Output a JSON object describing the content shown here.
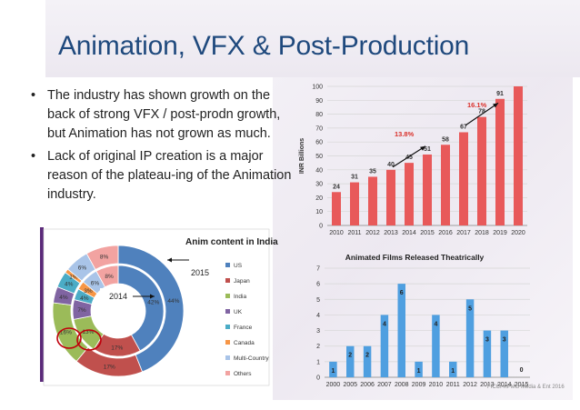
{
  "slide": {
    "title": "Animation, VFX & Post-Production",
    "bullets": [
      "The industry has shown growth on the back of strong VFX / post-prodn growth, but Animation has not grown as much.",
      "Lack of original IP creation is a major reason of the plateau-ing of the Animation industry."
    ],
    "bullet_symbol": "•",
    "credit": "FICCI-KPMG Media & Ent 2016",
    "colors": {
      "title": "#1f497d",
      "bar": "#e8595a",
      "blue_bar": "#4f9fe0",
      "growth": "#d9312b"
    }
  },
  "chart_data": [
    {
      "type": "bar",
      "ylabel": "INR Billions",
      "categories": [
        "2010",
        "2011",
        "2012",
        "2013",
        "2014",
        "2015",
        "2016",
        "2017",
        "2018",
        "2019",
        "2020"
      ],
      "values": [
        24,
        31,
        35,
        40,
        45,
        51,
        58,
        67,
        78,
        91,
        100
      ],
      "value_labels": [
        "24",
        "31",
        "35",
        "40",
        "45",
        "51",
        "58",
        "67",
        "78",
        "91",
        ""
      ],
      "ylim": [
        0,
        100
      ],
      "yticks": [
        "0",
        "10",
        "20",
        "30",
        "40",
        "50",
        "60",
        "70",
        "80",
        "90",
        "100"
      ],
      "annotations": [
        "13.8%",
        "16.1%"
      ],
      "grid": true
    },
    {
      "type": "bar",
      "title": "Animated Films Released Theatrically",
      "categories": [
        "2000",
        "2005",
        "2006",
        "2007",
        "2008",
        "2009",
        "2010",
        "2011",
        "2012",
        "2013",
        "2014",
        "2015"
      ],
      "tick_labels": [
        "2000",
        "2005",
        "2006",
        "2007",
        "2008",
        "2009",
        "2010",
        "2011",
        "2012",
        "2013",
        "2014",
        "2015"
      ],
      "values": [
        1,
        2,
        2,
        4,
        6,
        1,
        4,
        1,
        5,
        3,
        3,
        0
      ],
      "ylim": [
        0,
        7
      ],
      "yticks": [
        "0",
        "1",
        "2",
        "3",
        "4",
        "5",
        "6",
        "7"
      ],
      "grid": true
    },
    {
      "type": "pie",
      "title": "Anim content in India",
      "rings": [
        "2014",
        "2015"
      ],
      "ring_labels": [
        "2014",
        "2015"
      ],
      "categories": [
        "US",
        "Japan",
        "India",
        "UK",
        "France",
        "Canada",
        "Multi-Country",
        "Others"
      ],
      "colors": [
        "#4f81bd",
        "#c0504d",
        "#9bbb59",
        "#8064a2",
        "#4bacc6",
        "#f79646",
        "#a9c4e8",
        "#f2a3a1"
      ],
      "series": [
        {
          "name": "2014",
          "values": [
            42,
            17,
            13,
            7,
            4,
            3,
            6,
            8
          ],
          "labels": [
            "42%",
            "17%",
            "13%",
            "7%",
            "4%",
            "3%",
            "6%",
            "8%"
          ]
        },
        {
          "name": "2015",
          "values": [
            44,
            17,
            16,
            4,
            4,
            1,
            6,
            8
          ],
          "labels": [
            "44%",
            "17%",
            "16%",
            "4%",
            "4%",
            "1%",
            "6%",
            "8%"
          ]
        }
      ]
    }
  ]
}
